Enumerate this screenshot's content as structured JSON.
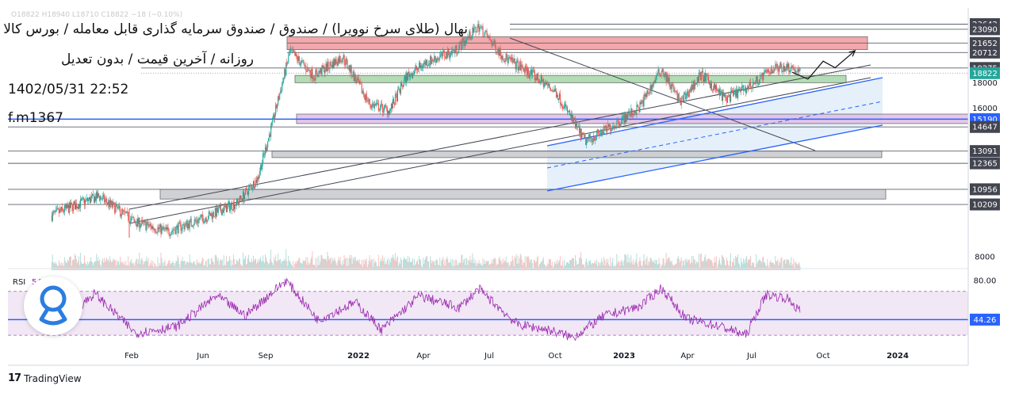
{
  "header": {
    "title_line1": "نهال (طلای سرخ نوویرا) / صندوق / صندوق سرمایه گذاری قابل معامله / بورس کالا",
    "title_line2": "روزانه / آخرین قیمت / بدون تعدیل",
    "datetime": "1402/05/31 22:52",
    "author": "f.m1367",
    "faint_symbol_line": "O18822 H18940 L18710 C18822 −18 (−0.10%)"
  },
  "footer": {
    "logo": "17",
    "brand": "TradingView"
  },
  "colors": {
    "up": "#26a69a",
    "down": "#ef5350",
    "resistance_zone": "#f19a9e",
    "support_zone_green": "#a5d6a7",
    "pivot_zone_purple": "#e1bee7",
    "grey_zone": "#c8cacd",
    "channel_fill": "#dcebf8",
    "channel_line": "#2962ff",
    "rsi_line": "#9c27b0",
    "rsi_band": "#ede1f2",
    "label_dark": "#434651",
    "label_price": "#26a69a",
    "label_blue": "#2962ff"
  },
  "chart_data": {
    "type": "candlestick",
    "instrument": "نهال (طلای سرخ نوویرا)",
    "timeframe": "روزانه",
    "x_axis_labels": [
      "Feb",
      "Jun",
      "Sep",
      "2022",
      "Apr",
      "Jul",
      "Oct",
      "2023",
      "Apr",
      "Jul",
      "Oct",
      "2024"
    ],
    "price_axis": {
      "scale": "log",
      "ylim": [
        7600,
        25500
      ],
      "tick_labels": [
        "23642",
        "23090",
        "21652",
        "20712",
        "19275",
        "18000",
        "16000",
        "15190",
        "14647",
        "13091",
        "12365",
        "10956",
        "10209",
        "8000"
      ],
      "last_price": "18822"
    },
    "price_path_keypoints": [
      {
        "date": "2021-01-25",
        "close": 9700
      },
      {
        "date": "2021-02-25",
        "close": 10200
      },
      {
        "date": "2021-03-25",
        "close": 10600
      },
      {
        "date": "2021-05-10",
        "close": 9400
      },
      {
        "date": "2021-06-20",
        "close": 9000
      },
      {
        "date": "2021-08-05",
        "close": 9600
      },
      {
        "date": "2021-09-15",
        "close": 10300
      },
      {
        "date": "2021-10-10",
        "close": 11500
      },
      {
        "date": "2021-10-28",
        "close": 14700
      },
      {
        "date": "2021-11-20",
        "close": 20800
      },
      {
        "date": "2021-12-20",
        "close": 18600
      },
      {
        "date": "2022-01-25",
        "close": 20300
      },
      {
        "date": "2022-02-28",
        "close": 16300
      },
      {
        "date": "2022-03-25",
        "close": 15800
      },
      {
        "date": "2022-04-15",
        "close": 18500
      },
      {
        "date": "2022-05-10",
        "close": 19800
      },
      {
        "date": "2022-06-15",
        "close": 20900
      },
      {
        "date": "2022-07-15",
        "close": 23400
      },
      {
        "date": "2022-08-15",
        "close": 20300
      },
      {
        "date": "2022-09-20",
        "close": 18700
      },
      {
        "date": "2022-10-20",
        "close": 17200
      },
      {
        "date": "2022-11-25",
        "close": 13700
      },
      {
        "date": "2022-12-20",
        "close": 14400
      },
      {
        "date": "2023-02-01",
        "close": 16000
      },
      {
        "date": "2023-03-01",
        "close": 19200
      },
      {
        "date": "2023-03-25",
        "close": 16400
      },
      {
        "date": "2023-04-20",
        "close": 18700
      },
      {
        "date": "2023-05-20",
        "close": 16700
      },
      {
        "date": "2023-06-20",
        "close": 17700
      },
      {
        "date": "2023-07-20",
        "close": 19300
      },
      {
        "date": "2023-08-10",
        "close": 19400
      },
      {
        "date": "2023-08-22",
        "close": 18822
      }
    ],
    "zones": [
      {
        "name": "resistance",
        "from": 21000,
        "to": 22300
      },
      {
        "name": "support-green",
        "from": 18000,
        "to": 18620
      },
      {
        "name": "pivot-purple",
        "from": 14880,
        "to": 15550
      },
      {
        "name": "grey-mid",
        "from": 12700,
        "to": 13091
      },
      {
        "name": "grey-low",
        "from": 10470,
        "to": 10956
      }
    ],
    "horizontal_levels": [
      23642,
      23090,
      21652,
      20712,
      19275,
      18822,
      15190,
      14647,
      13091,
      12365,
      10956,
      10209
    ],
    "projection_path": [
      {
        "date": "2023-09-01",
        "price": 18300
      },
      {
        "date": "2023-09-20",
        "price": 19900
      },
      {
        "date": "2023-10-05",
        "price": 19300
      },
      {
        "date": "2023-10-30",
        "price": 20900
      }
    ],
    "rsi": {
      "label": "RSI",
      "value": "54.51",
      "axis_label": "80.00",
      "current_label": "44.26",
      "band": [
        30,
        70
      ],
      "keypoints": [
        {
          "date": "2021-02-10",
          "value": 45
        },
        {
          "date": "2021-03-20",
          "value": 68
        },
        {
          "date": "2021-05-10",
          "value": 32
        },
        {
          "date": "2021-07-01",
          "value": 38
        },
        {
          "date": "2021-08-20",
          "value": 66
        },
        {
          "date": "2021-09-25",
          "value": 48
        },
        {
          "date": "2021-11-15",
          "value": 80
        },
        {
          "date": "2021-12-25",
          "value": 44
        },
        {
          "date": "2022-02-10",
          "value": 60
        },
        {
          "date": "2022-03-15",
          "value": 35
        },
        {
          "date": "2022-05-01",
          "value": 66
        },
        {
          "date": "2022-06-20",
          "value": 55
        },
        {
          "date": "2022-07-15",
          "value": 72
        },
        {
          "date": "2022-09-01",
          "value": 40
        },
        {
          "date": "2022-10-10",
          "value": 35
        },
        {
          "date": "2022-11-10",
          "value": 28
        },
        {
          "date": "2022-12-20",
          "value": 48
        },
        {
          "date": "2023-02-01",
          "value": 56
        },
        {
          "date": "2023-03-01",
          "value": 73
        },
        {
          "date": "2023-04-01",
          "value": 45
        },
        {
          "date": "2023-05-15",
          "value": 38
        },
        {
          "date": "2023-06-15",
          "value": 30
        },
        {
          "date": "2023-07-10",
          "value": 67
        },
        {
          "date": "2023-08-05",
          "value": 64
        },
        {
          "date": "2023-08-22",
          "value": 52
        }
      ]
    }
  }
}
